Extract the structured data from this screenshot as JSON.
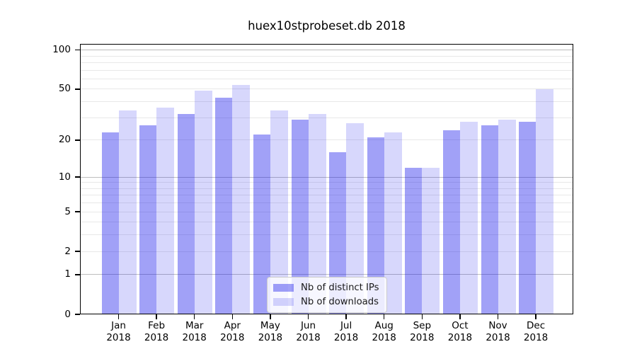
{
  "chart_data": {
    "type": "bar",
    "title": "huex10stprobeset.db 2018",
    "categories": [
      "Jan",
      "Feb",
      "Mar",
      "Apr",
      "May",
      "Jun",
      "Jul",
      "Aug",
      "Sep",
      "Oct",
      "Nov",
      "Dec"
    ],
    "x_tick_year": "2018",
    "series": [
      {
        "name": "Nb of distinct IPs",
        "color": "rgba(20,20,235,0.40)",
        "values": [
          23,
          26,
          32,
          43,
          22,
          29,
          16,
          21,
          12,
          24,
          26,
          28
        ]
      },
      {
        "name": "Nb of downloads",
        "color": "rgba(20,20,235,0.17)",
        "values": [
          34,
          36,
          49,
          54,
          34,
          32,
          27,
          23,
          12,
          28,
          29,
          50
        ]
      }
    ],
    "xlabel": "",
    "ylabel": "",
    "yscale": "log1p",
    "ylim": [
      0,
      112
    ],
    "y_ticks_labeled": [
      0,
      1,
      2,
      5,
      10,
      20,
      50,
      100
    ],
    "y_gridlines_major": [
      1,
      10,
      100
    ],
    "y_gridlines_minor": [
      2,
      3,
      4,
      5,
      6,
      7,
      8,
      9,
      20,
      30,
      40,
      50,
      60,
      70,
      80,
      90
    ],
    "grid": true,
    "legend_position": "bottom-center",
    "colors": {
      "grid_major": "#bdbdbd",
      "grid_minor": "#e8e8e8",
      "axis": "#000000",
      "text": "#1a1a1a",
      "legend_border": "#cccccc"
    }
  }
}
